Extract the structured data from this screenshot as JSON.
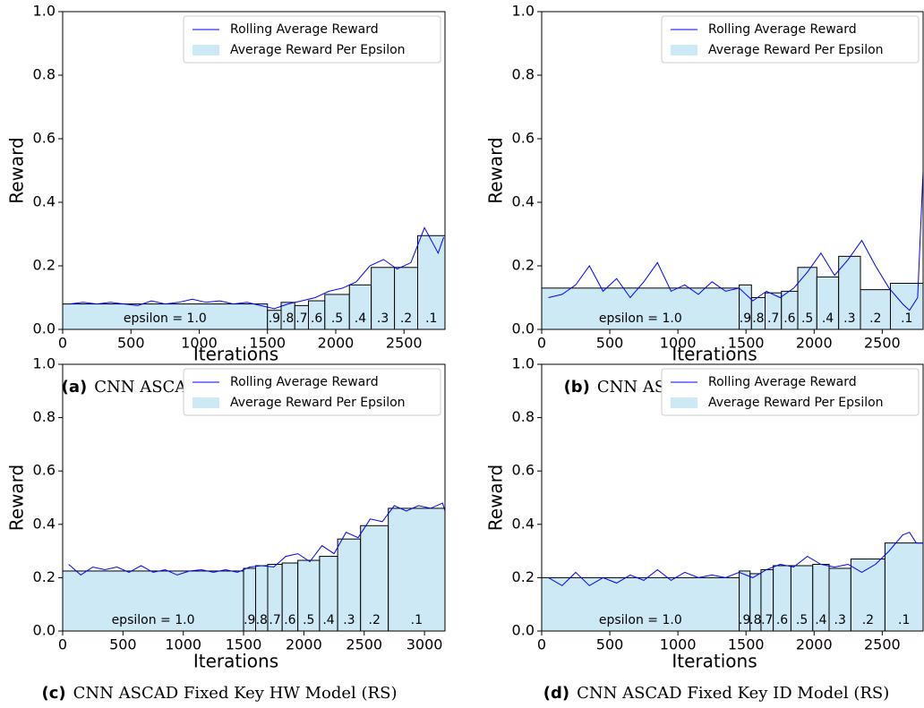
{
  "chart_data": [
    {
      "type": "combo",
      "caption_label": "(a)",
      "caption": "CNN ASCAD Fixed Key HW Model",
      "xlabel": "Iterations",
      "ylabel": "Reward",
      "xlim": [
        0,
        2800
      ],
      "xticks": [
        0,
        500,
        1000,
        1500,
        2000,
        2500
      ],
      "ylim": [
        0,
        1
      ],
      "yticks": [
        {
          "value": 0,
          "label": "0.0"
        },
        {
          "value": 0.2,
          "label": "0.2"
        },
        {
          "value": 0.4,
          "label": "0.4"
        },
        {
          "value": 0.6,
          "label": "0.6"
        },
        {
          "value": 0.8,
          "label": "0.8"
        },
        {
          "value": 1,
          "label": "1.0"
        }
      ],
      "legend": "upper right",
      "series": [
        {
          "name": "Rolling Average Reward",
          "type": "line",
          "color": "#0000ff",
          "x": [
            50,
            150,
            250,
            350,
            450,
            550,
            650,
            750,
            850,
            950,
            1050,
            1150,
            1250,
            1350,
            1450,
            1550,
            1650,
            1750,
            1850,
            1950,
            2050,
            2150,
            2250,
            2350,
            2450,
            2550,
            2650,
            2750,
            2790
          ],
          "values": [
            0.08,
            0.085,
            0.08,
            0.085,
            0.08,
            0.075,
            0.09,
            0.08,
            0.085,
            0.095,
            0.085,
            0.09,
            0.08,
            0.085,
            0.075,
            0.065,
            0.08,
            0.09,
            0.1,
            0.12,
            0.13,
            0.15,
            0.2,
            0.22,
            0.19,
            0.21,
            0.32,
            0.24,
            0.29
          ]
        },
        {
          "name": "Average Reward Per Epsilon",
          "type": "bar",
          "color": "#cde9f5",
          "bins": [
            0,
            1500,
            1600,
            1700,
            1800,
            1920,
            2100,
            2260,
            2430,
            2600,
            2800
          ],
          "values": [
            0.08,
            0.06,
            0.085,
            0.075,
            0.09,
            0.11,
            0.14,
            0.195,
            0.195,
            0.295
          ],
          "labels": [
            "epsilon = 1.0",
            ".9",
            ".8",
            ".7",
            ".6",
            ".5",
            ".4",
            ".3",
            ".2",
            ".1"
          ]
        }
      ]
    },
    {
      "type": "combo",
      "caption_label": "(b)",
      "caption": "CNN ASCAD Fixed Key ID Model",
      "xlabel": "Iterations",
      "ylabel": "Reward",
      "xlim": [
        0,
        2800
      ],
      "xticks": [
        0,
        500,
        1000,
        1500,
        2000,
        2500
      ],
      "ylim": [
        0,
        1
      ],
      "yticks": [
        {
          "value": 0,
          "label": "0.0"
        },
        {
          "value": 0.2,
          "label": "0.2"
        },
        {
          "value": 0.4,
          "label": "0.4"
        },
        {
          "value": 0.6,
          "label": "0.6"
        },
        {
          "value": 0.8,
          "label": "0.8"
        },
        {
          "value": 1,
          "label": "1.0"
        }
      ],
      "legend": "upper right",
      "series": [
        {
          "name": "Rolling Average Reward",
          "type": "line",
          "color": "#0000ff",
          "x": [
            50,
            150,
            250,
            350,
            450,
            550,
            650,
            750,
            850,
            950,
            1050,
            1150,
            1250,
            1350,
            1450,
            1550,
            1650,
            1750,
            1850,
            1950,
            2050,
            2150,
            2250,
            2350,
            2450,
            2550,
            2650,
            2700,
            2760,
            2800
          ],
          "values": [
            0.1,
            0.11,
            0.14,
            0.2,
            0.12,
            0.16,
            0.1,
            0.15,
            0.21,
            0.12,
            0.14,
            0.11,
            0.15,
            0.12,
            0.13,
            0.09,
            0.12,
            0.1,
            0.13,
            0.18,
            0.24,
            0.17,
            0.22,
            0.28,
            0.2,
            0.13,
            0.08,
            0.06,
            0.1,
            0.5
          ]
        },
        {
          "name": "Average Reward Per Epsilon",
          "type": "bar",
          "color": "#cde9f5",
          "bins": [
            0,
            1450,
            1540,
            1640,
            1760,
            1880,
            2020,
            2180,
            2340,
            2560,
            2800
          ],
          "values": [
            0.13,
            0.14,
            0.1,
            0.115,
            0.12,
            0.195,
            0.165,
            0.23,
            0.125,
            0.145
          ],
          "labels": [
            "epsilon = 1.0",
            ".9",
            ".8",
            ".7",
            ".6",
            ".5",
            ".4",
            ".3",
            ".2",
            ".1"
          ]
        }
      ]
    },
    {
      "type": "combo",
      "caption_label": "(c)",
      "caption": "CNN ASCAD Fixed Key HW Model (RS)",
      "xlabel": "Iterations",
      "ylabel": "Reward",
      "xlim": [
        0,
        3170
      ],
      "xticks": [
        0,
        500,
        1000,
        1500,
        2000,
        2500,
        3000
      ],
      "ylim": [
        0,
        1
      ],
      "yticks": [
        {
          "value": 0,
          "label": "0.0"
        },
        {
          "value": 0.2,
          "label": "0.2"
        },
        {
          "value": 0.4,
          "label": "0.4"
        },
        {
          "value": 0.6,
          "label": "0.6"
        },
        {
          "value": 0.8,
          "label": "0.8"
        },
        {
          "value": 1,
          "label": "1.0"
        }
      ],
      "legend": "upper right",
      "series": [
        {
          "name": "Rolling Average Reward",
          "type": "line",
          "color": "#0000ff",
          "x": [
            50,
            150,
            250,
            350,
            450,
            550,
            650,
            750,
            850,
            950,
            1050,
            1150,
            1250,
            1350,
            1450,
            1550,
            1650,
            1750,
            1850,
            1950,
            2050,
            2150,
            2250,
            2350,
            2450,
            2550,
            2650,
            2750,
            2850,
            2950,
            3050,
            3150,
            3170
          ],
          "values": [
            0.25,
            0.21,
            0.24,
            0.23,
            0.24,
            0.22,
            0.245,
            0.22,
            0.23,
            0.21,
            0.225,
            0.23,
            0.22,
            0.23,
            0.22,
            0.24,
            0.245,
            0.24,
            0.28,
            0.29,
            0.26,
            0.32,
            0.29,
            0.37,
            0.35,
            0.42,
            0.41,
            0.47,
            0.45,
            0.47,
            0.46,
            0.48,
            0.45
          ]
        },
        {
          "name": "Average Reward Per Epsilon",
          "type": "bar",
          "color": "#cde9f5",
          "bins": [
            0,
            1500,
            1600,
            1700,
            1820,
            1950,
            2130,
            2280,
            2470,
            2700,
            3170
          ],
          "values": [
            0.225,
            0.235,
            0.245,
            0.25,
            0.255,
            0.265,
            0.28,
            0.345,
            0.395,
            0.46
          ],
          "labels": [
            "epsilon = 1.0",
            ".9",
            ".8",
            ".7",
            ".6",
            ".5",
            ".4",
            ".3",
            ".2",
            ".1"
          ]
        }
      ]
    },
    {
      "type": "combo",
      "caption_label": "(d)",
      "caption": "CNN ASCAD Fixed Key ID Model (RS)",
      "xlabel": "Iterations",
      "ylabel": "Reward",
      "xlim": [
        0,
        2800
      ],
      "xticks": [
        0,
        500,
        1000,
        1500,
        2000,
        2500
      ],
      "ylim": [
        0,
        1
      ],
      "yticks": [
        {
          "value": 0,
          "label": "0.0"
        },
        {
          "value": 0.2,
          "label": "0.2"
        },
        {
          "value": 0.4,
          "label": "0.4"
        },
        {
          "value": 0.6,
          "label": "0.6"
        },
        {
          "value": 0.8,
          "label": "0.8"
        },
        {
          "value": 1,
          "label": "1.0"
        }
      ],
      "legend": "upper right",
      "series": [
        {
          "name": "Rolling Average Reward",
          "type": "line",
          "color": "#0000ff",
          "x": [
            50,
            150,
            250,
            350,
            450,
            550,
            650,
            750,
            850,
            950,
            1050,
            1150,
            1250,
            1350,
            1450,
            1550,
            1650,
            1750,
            1850,
            1950,
            2050,
            2150,
            2250,
            2350,
            2450,
            2550,
            2650,
            2700,
            2750,
            2800
          ],
          "values": [
            0.2,
            0.17,
            0.22,
            0.17,
            0.2,
            0.18,
            0.21,
            0.19,
            0.23,
            0.19,
            0.22,
            0.2,
            0.21,
            0.2,
            0.22,
            0.2,
            0.23,
            0.25,
            0.24,
            0.28,
            0.25,
            0.24,
            0.25,
            0.22,
            0.25,
            0.3,
            0.36,
            0.37,
            0.33,
            0.33
          ]
        },
        {
          "name": "Average Reward Per Epsilon",
          "type": "bar",
          "color": "#cde9f5",
          "bins": [
            0,
            1450,
            1530,
            1610,
            1700,
            1830,
            1990,
            2110,
            2270,
            2520,
            2800
          ],
          "values": [
            0.2,
            0.225,
            0.215,
            0.23,
            0.245,
            0.245,
            0.25,
            0.235,
            0.27,
            0.33
          ],
          "labels": [
            "epsilon = 1.0",
            ".9",
            ".8",
            ".7",
            ".6",
            ".5",
            ".4",
            ".3",
            ".2",
            ".1"
          ]
        }
      ]
    }
  ]
}
